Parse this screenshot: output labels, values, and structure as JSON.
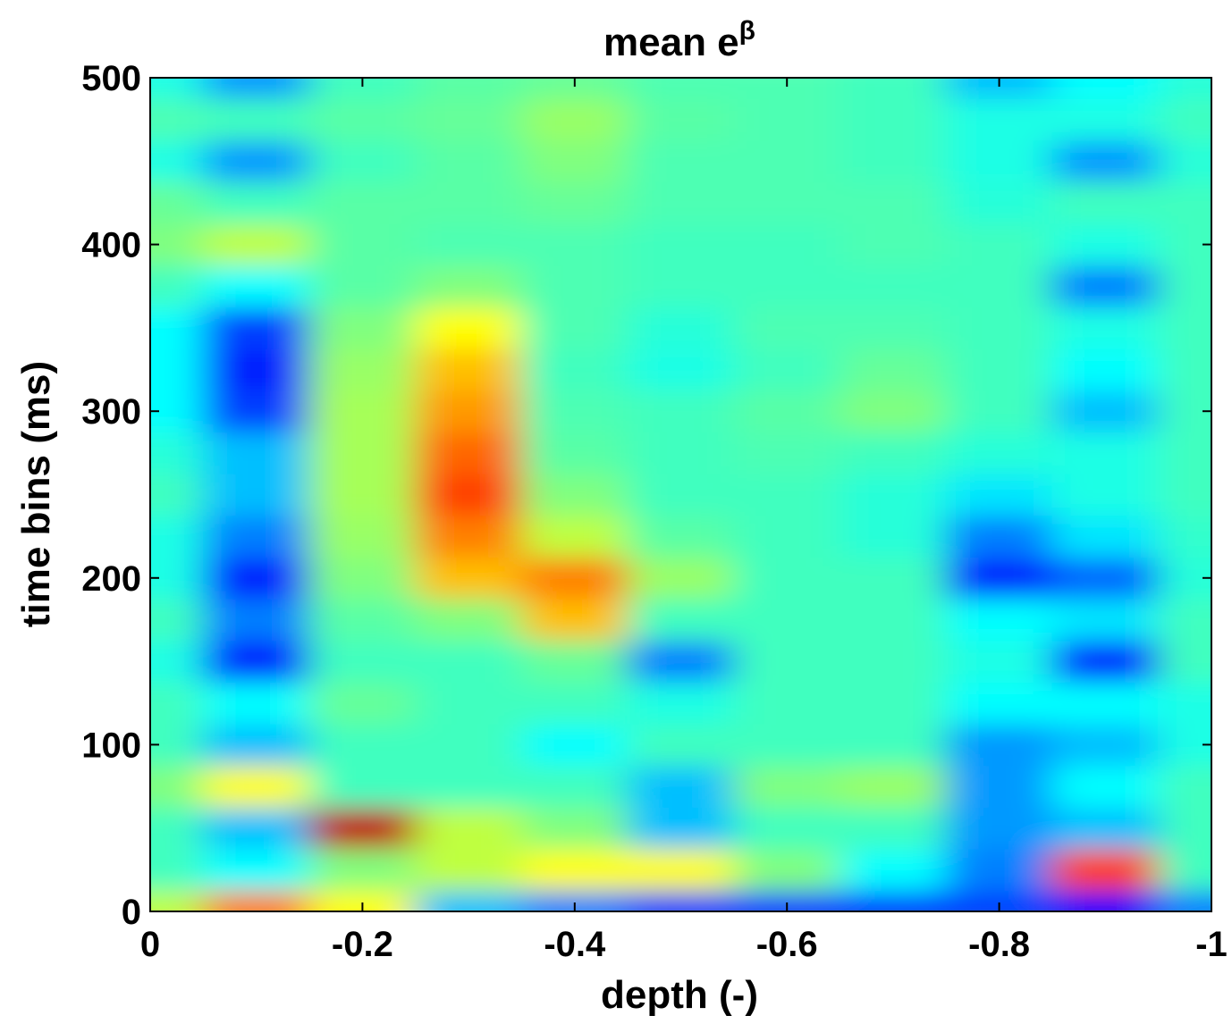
{
  "chart_data": {
    "type": "heatmap",
    "title": "mean e",
    "title_superscript": "β",
    "x_label": "depth (-)",
    "y_label": "time bins (ms)",
    "colormap": "jet",
    "zlim": [
      0.6,
      1.4
    ],
    "xlim": [
      0,
      -1
    ],
    "ylim": [
      0,
      500
    ],
    "xticks": [
      0,
      -0.2,
      -0.4,
      -0.6,
      -0.8,
      -1
    ],
    "yticks": [
      0,
      100,
      200,
      300,
      400,
      500
    ],
    "x": [
      0,
      -0.1,
      -0.2,
      -0.3,
      -0.4,
      -0.5,
      -0.6,
      -0.7,
      -0.8,
      -0.9,
      -1
    ],
    "y": [
      0,
      25,
      50,
      75,
      100,
      125,
      150,
      175,
      200,
      225,
      250,
      275,
      300,
      325,
      350,
      375,
      400,
      425,
      450,
      475,
      500
    ],
    "z": [
      [
        1.05,
        1.2,
        1.1,
        0.85,
        0.8,
        0.75,
        0.75,
        0.75,
        0.75,
        0.7,
        0.8
      ],
      [
        0.95,
        0.9,
        1.0,
        1.05,
        1.1,
        1.1,
        1.0,
        0.9,
        0.8,
        1.25,
        0.95
      ],
      [
        0.95,
        0.85,
        1.35,
        1.05,
        1.0,
        0.85,
        0.95,
        0.95,
        0.82,
        0.85,
        0.95
      ],
      [
        1.0,
        1.1,
        0.95,
        0.95,
        0.95,
        0.85,
        1.0,
        1.02,
        0.82,
        0.9,
        0.95
      ],
      [
        0.95,
        0.85,
        0.95,
        0.95,
        0.9,
        0.95,
        0.95,
        0.95,
        0.82,
        0.85,
        0.92
      ],
      [
        0.95,
        0.9,
        0.98,
        0.95,
        0.95,
        0.92,
        0.95,
        0.95,
        0.9,
        0.9,
        0.92
      ],
      [
        0.92,
        0.72,
        0.95,
        0.95,
        0.98,
        0.8,
        0.95,
        0.95,
        0.92,
        0.72,
        0.95
      ],
      [
        0.95,
        0.8,
        0.97,
        1.0,
        1.15,
        0.95,
        0.95,
        0.95,
        0.9,
        0.88,
        0.95
      ],
      [
        0.92,
        0.72,
        1.0,
        1.15,
        1.2,
        1.02,
        0.95,
        0.95,
        0.72,
        0.78,
        0.93
      ],
      [
        0.92,
        0.8,
        1.02,
        1.2,
        1.05,
        0.97,
        0.95,
        0.93,
        0.8,
        0.88,
        0.94
      ],
      [
        0.95,
        0.85,
        1.03,
        1.25,
        1.0,
        0.95,
        0.95,
        0.93,
        0.88,
        0.92,
        0.95
      ],
      [
        0.93,
        0.85,
        1.03,
        1.22,
        0.97,
        0.95,
        0.96,
        0.95,
        0.93,
        0.92,
        0.95
      ],
      [
        0.9,
        0.75,
        1.03,
        1.18,
        0.96,
        0.95,
        0.97,
        1.0,
        0.95,
        0.85,
        0.95
      ],
      [
        0.9,
        0.72,
        1.02,
        1.15,
        0.95,
        0.92,
        0.95,
        0.98,
        0.95,
        0.9,
        0.95
      ],
      [
        0.9,
        0.75,
        1.0,
        1.1,
        0.96,
        0.93,
        0.96,
        0.96,
        0.95,
        0.92,
        0.95
      ],
      [
        0.95,
        0.9,
        0.97,
        1.0,
        0.96,
        0.95,
        0.95,
        0.95,
        0.95,
        0.8,
        0.95
      ],
      [
        1.0,
        1.05,
        0.97,
        0.96,
        0.96,
        0.95,
        0.95,
        0.96,
        0.95,
        0.92,
        0.95
      ],
      [
        0.98,
        0.95,
        0.97,
        0.97,
        0.98,
        0.96,
        0.96,
        0.96,
        0.93,
        0.95,
        0.95
      ],
      [
        0.92,
        0.82,
        0.95,
        0.97,
        1.0,
        0.96,
        0.96,
        0.95,
        0.92,
        0.82,
        0.93
      ],
      [
        0.96,
        0.95,
        0.97,
        0.98,
        1.02,
        0.97,
        0.96,
        0.95,
        0.92,
        0.92,
        0.95
      ],
      [
        0.92,
        0.82,
        0.95,
        0.97,
        0.98,
        0.96,
        0.96,
        0.95,
        0.85,
        0.9,
        0.93
      ]
    ]
  }
}
